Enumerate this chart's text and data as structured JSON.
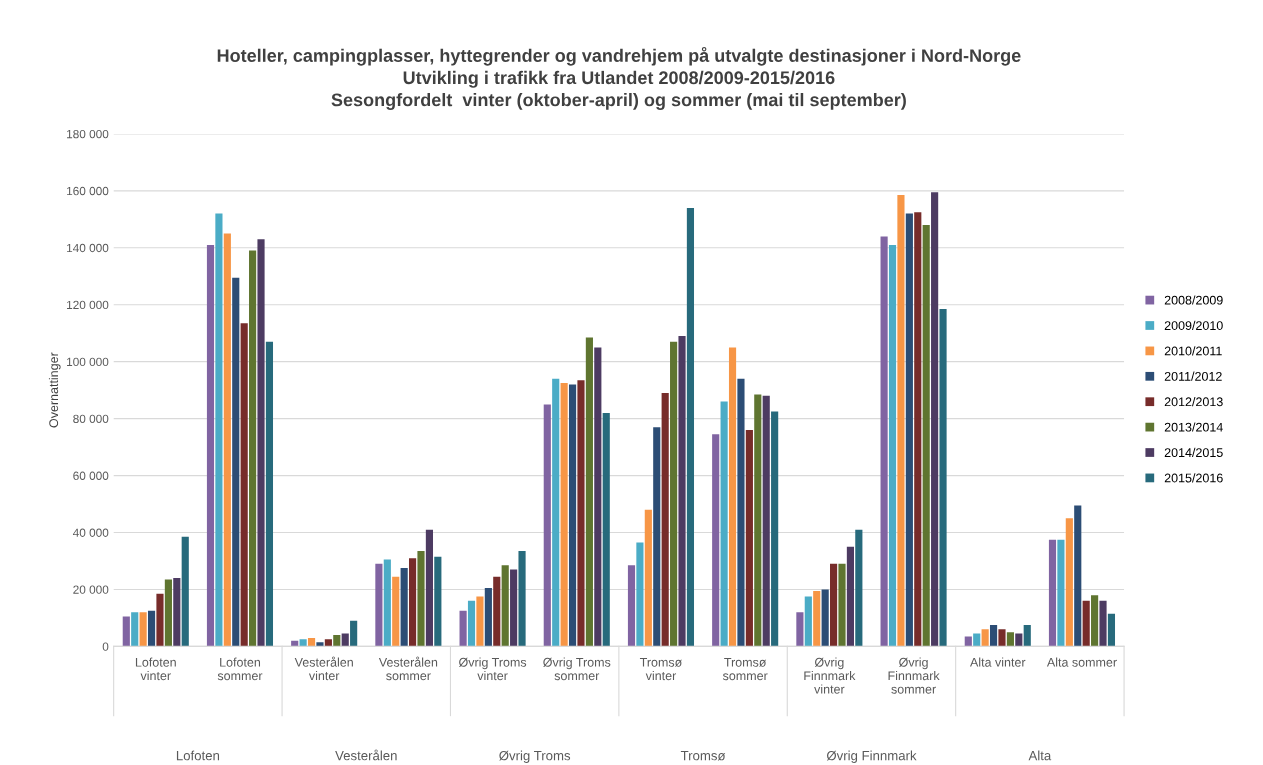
{
  "chart_data": {
    "type": "bar",
    "title": "Hoteller, campingplasser, hyttegrender og vandrehjem på utvalgte destinasjoner i Nord-Norge\nUtvikling i trafikk fra Utlandet 2008/2009-2015/2016\nSesongfordelt  vinter (oktober-april) og sommer (mai til september)",
    "ylabel": "Overnattinger",
    "categories": [
      "Lofoten\nvinter",
      "Lofoten\nsommer",
      "Vesterålen\nvinter",
      "Vesterålen\nsommer",
      "Øvrig Troms\nvinter",
      "Øvrig Troms\nsommer",
      "Tromsø\nvinter",
      "Tromsø\nsommer",
      "Øvrig\nFinnmark\nvinter",
      "Øvrig\nFinnmark\nsommer",
      "Alta vinter",
      "Alta sommer"
    ],
    "annotations": [
      "Lofoten",
      "Vesterålen",
      "Øvrig Troms",
      "Tromsø",
      "Øvrig Finnmark",
      "Alta"
    ],
    "series": [
      {
        "name": "2008/2009",
        "color": "#8064a2",
        "values": [
          10500,
          141000,
          2000,
          29000,
          12500,
          85000,
          28500,
          74500,
          12000,
          144000,
          3500,
          37500
        ]
      },
      {
        "name": "2009/2010",
        "color": "#4bacc6",
        "values": [
          12000,
          152000,
          2500,
          30500,
          16000,
          94000,
          36500,
          86000,
          17500,
          141000,
          4500,
          37500
        ]
      },
      {
        "name": "2010/2011",
        "color": "#f79646",
        "values": [
          12000,
          145000,
          3000,
          24500,
          17500,
          92500,
          48000,
          105000,
          19500,
          158500,
          6000,
          45000
        ]
      },
      {
        "name": "2011/2012",
        "color": "#2c4d75",
        "values": [
          12500,
          129500,
          1500,
          27500,
          20500,
          92000,
          77000,
          94000,
          20000,
          152000,
          7500,
          49500
        ]
      },
      {
        "name": "2012/2013",
        "color": "#772c2a",
        "values": [
          18500,
          113500,
          2500,
          31000,
          24500,
          93500,
          89000,
          76000,
          29000,
          152500,
          6000,
          16000
        ]
      },
      {
        "name": "2013/2014",
        "color": "#5f7530",
        "values": [
          23500,
          139000,
          4000,
          33500,
          28500,
          108500,
          107000,
          88500,
          29000,
          148000,
          5000,
          18000
        ]
      },
      {
        "name": "2014/2015",
        "color": "#4d3b62",
        "values": [
          24000,
          143000,
          4500,
          41000,
          27000,
          105000,
          109000,
          88000,
          35000,
          159500,
          4500,
          16000
        ]
      },
      {
        "name": "2015/2016",
        "color": "#276a7c",
        "values": [
          38500,
          107000,
          9000,
          31500,
          33500,
          82000,
          154000,
          82500,
          41000,
          118500,
          7500,
          11500
        ]
      }
    ],
    "ylim": [
      0,
      180000
    ],
    "yticks": [
      {
        "value": 0,
        "label": "0"
      },
      {
        "value": 20000,
        "label": "20 000"
      },
      {
        "value": 40000,
        "label": "40 000"
      },
      {
        "value": 60000,
        "label": "60 000"
      },
      {
        "value": 80000,
        "label": "80 000"
      },
      {
        "value": 100000,
        "label": "100 000"
      },
      {
        "value": 120000,
        "label": "120 000"
      },
      {
        "value": 140000,
        "label": "140 000"
      },
      {
        "value": 160000,
        "label": "160 000"
      },
      {
        "value": 180000,
        "label": "180 000"
      }
    ],
    "grid": "y",
    "legend": "right"
  }
}
